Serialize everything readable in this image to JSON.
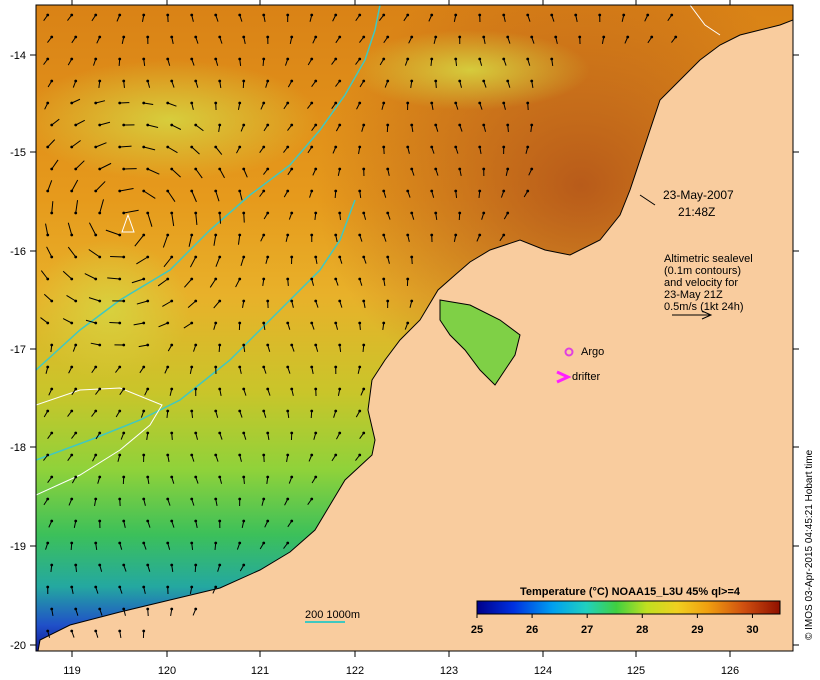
{
  "map": {
    "timestamp_date": "23-May-2007",
    "timestamp_time": "21:48Z",
    "altimetry_note": [
      "Altimetric sealevel",
      "(0.1m contours)",
      "and velocity for",
      "23-May 21Z",
      "0.5m/s (1kt 24h)"
    ],
    "legend_argo": "Argo",
    "legend_drifter": "drifter",
    "bathy_label": "200 1000m",
    "credit": "© IMOS 03-Apr-2015 04:45:21 Hobart time",
    "lon_ticks": [
      "119",
      "120",
      "121",
      "122",
      "123",
      "124",
      "125",
      "126"
    ],
    "lat_ticks": [
      "-14",
      "-15",
      "-16",
      "-17",
      "-18",
      "-19",
      "-20"
    ],
    "colorbar": {
      "title": "Temperature (°C) NOAA15_L3U 45% ql>=4",
      "ticks": [
        "25",
        "26",
        "27",
        "28",
        "29",
        "30"
      ],
      "min": 25,
      "max": 30.5
    },
    "colors": {
      "land": "#f9cc9e",
      "warm_sea": "#e98d18",
      "bathy_line": "#40c8c0",
      "argo": "#e040e0",
      "drifter": "#ff20ff"
    }
  }
}
